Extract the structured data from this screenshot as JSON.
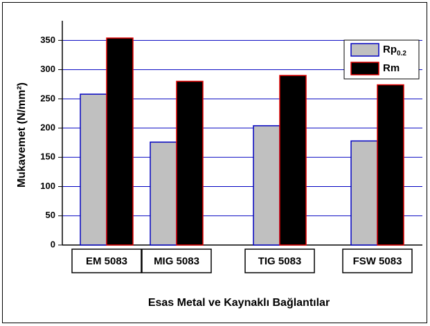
{
  "chart_data": {
    "type": "bar",
    "x_label": "Esas Metal ve Kaynaklı Bağlantılar",
    "y_label": "Mukavemet (N/mm²)",
    "categories": [
      "EM 5083",
      "MIG 5083",
      "TIG 5083",
      "FSW 5083"
    ],
    "series": [
      {
        "name": "Rp0.2",
        "color": "#c0c0c0",
        "edge_color": "#0000c0",
        "values": [
          258,
          176,
          204,
          178
        ]
      },
      {
        "name": "Rm",
        "color": "#000000",
        "edge_color": "#e00000",
        "values": [
          354,
          280,
          290,
          274
        ]
      }
    ],
    "ylim": [
      0,
      380
    ],
    "yticks": [
      0,
      50,
      100,
      150,
      200,
      250,
      300,
      350
    ],
    "grid": true,
    "grid_color": "#0000c0",
    "legend": "upper right"
  }
}
